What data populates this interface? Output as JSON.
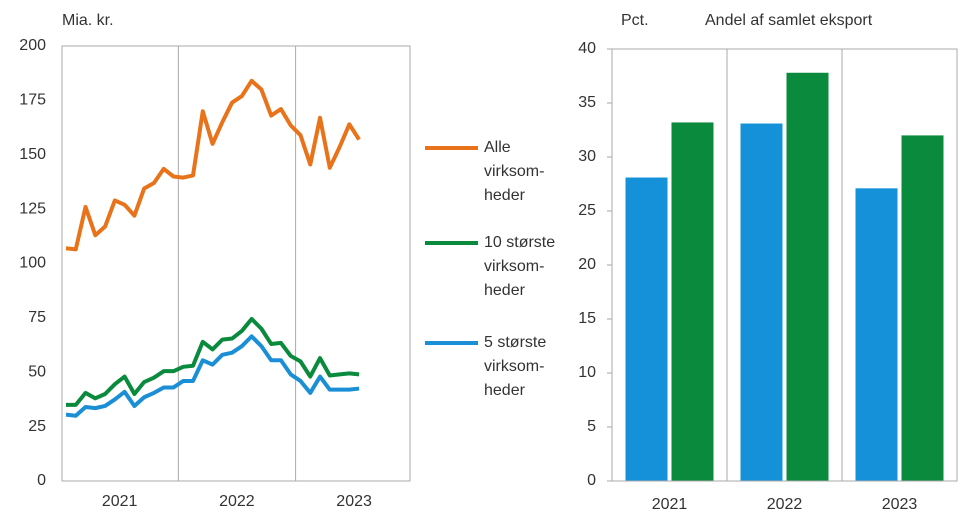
{
  "chart_data": [
    {
      "type": "line",
      "ylabel": "Mia. kr.",
      "x": [
        null,
        null,
        null,
        null,
        null,
        null,
        "2021",
        null,
        null,
        null,
        null,
        null,
        null,
        null,
        null,
        null,
        null,
        null,
        "2022",
        null,
        null,
        null,
        null,
        null,
        null,
        null,
        null,
        null,
        null,
        null,
        "2023"
      ],
      "ylim": [
        0,
        200
      ],
      "yticks": [
        0,
        25,
        50,
        75,
        100,
        125,
        150,
        175,
        200
      ],
      "series": [
        {
          "name": "Alle virksom-heder",
          "color": "#e8731a",
          "values": [
            107,
            106.5,
            126,
            113,
            117,
            129,
            127,
            122,
            134.5,
            137,
            143.5,
            140,
            139.5,
            140.5,
            170,
            155,
            165,
            174,
            177,
            184,
            180,
            168,
            171,
            163.5,
            159,
            145.5,
            167,
            144,
            153.5,
            164,
            157
          ]
        },
        {
          "name": "10 største virksom-heder",
          "color": "#0a8a3c",
          "values": [
            35,
            35,
            40.5,
            38,
            40,
            44.5,
            48,
            40,
            45.5,
            47.5,
            50.5,
            50.5,
            52.5,
            53,
            64,
            60.5,
            65,
            65.5,
            69,
            74.5,
            70,
            63,
            63.5,
            57.5,
            55,
            48,
            56.5,
            48.5,
            49,
            49.5,
            49
          ]
        },
        {
          "name": "5 største virksom-heder",
          "color": "#1a8fd6",
          "values": [
            30.5,
            30,
            34,
            33.5,
            34.5,
            37.5,
            41,
            34.5,
            38.5,
            40.5,
            43,
            43,
            46,
            46,
            55.5,
            53.5,
            58,
            59,
            62,
            66.5,
            62,
            55.5,
            55.5,
            49,
            46,
            40.5,
            48,
            42,
            42,
            42,
            42.5
          ]
        }
      ]
    },
    {
      "type": "bar",
      "ylabel": "Pct.",
      "title": "Andel af samlet eksport",
      "categories": [
        "2021",
        "2022",
        "2023"
      ],
      "ylim": [
        0,
        40
      ],
      "yticks": [
        0,
        5,
        10,
        15,
        20,
        25,
        30,
        35,
        40
      ],
      "series": [
        {
          "color": "#1491d9",
          "values": [
            28.1,
            33.1,
            27.1
          ]
        },
        {
          "color": "#0a8a3c",
          "values": [
            33.2,
            37.8,
            32.0
          ]
        }
      ]
    }
  ]
}
